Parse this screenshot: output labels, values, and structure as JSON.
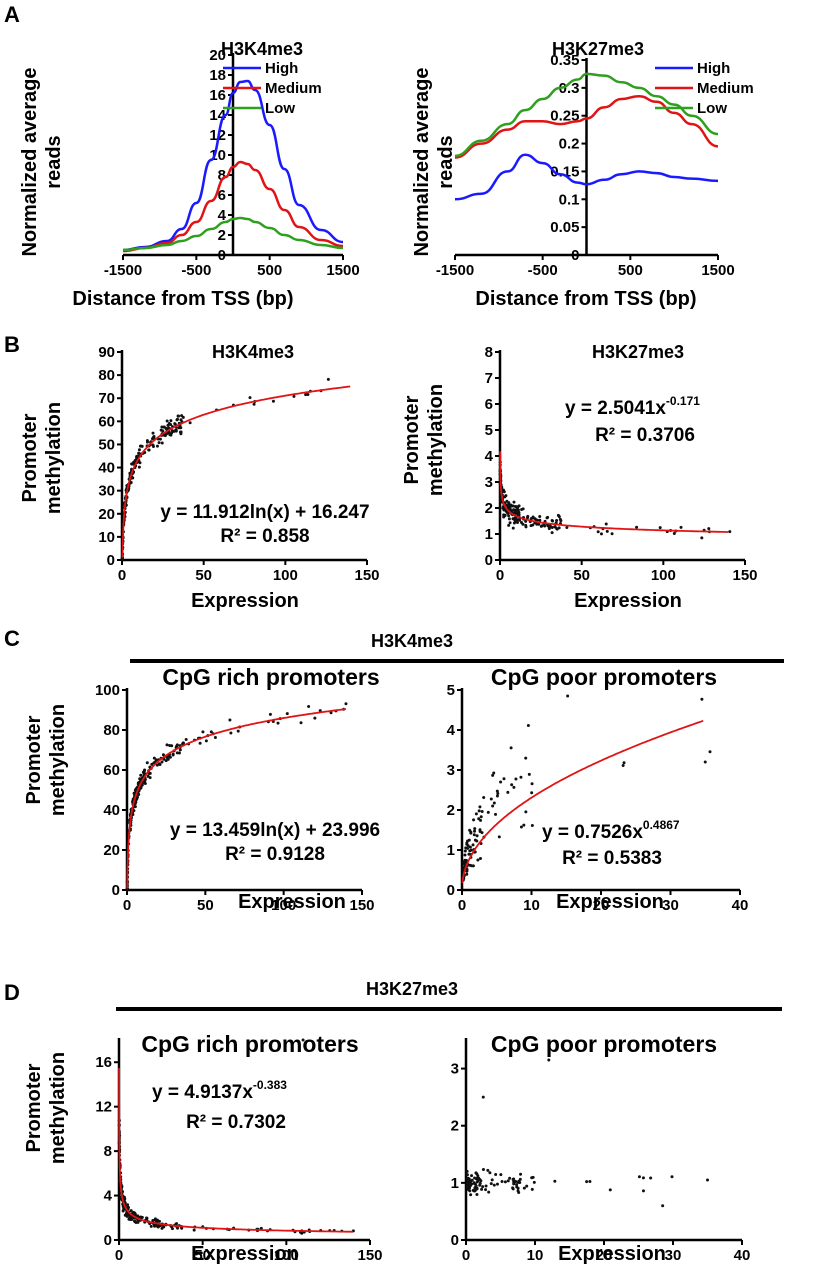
{
  "panels": {
    "A": "A",
    "B": "B",
    "C": "C",
    "D": "D"
  },
  "headers": {
    "C": "H3K4me3",
    "D": "H3K27me3"
  },
  "colors": {
    "High": "#1a1aff",
    "Medium": "#e01414",
    "Low": "#2ea01e",
    "fit": "#e01414",
    "dots": "#111111"
  },
  "chart_data": [
    {
      "id": "A1",
      "type": "line",
      "title": "H3K4me3",
      "xlabel": "Distance from TSS (bp)",
      "ylabel_lines": [
        "Normalized average",
        "reads"
      ],
      "xlim": [
        -1500,
        1500
      ],
      "ylim": [
        0,
        20
      ],
      "xticks": [
        -1500,
        -500,
        500,
        1500
      ],
      "yticks": [
        0,
        2,
        4,
        6,
        8,
        10,
        12,
        14,
        16,
        18,
        20
      ],
      "x": [
        -1500,
        -1200,
        -900,
        -700,
        -500,
        -300,
        -100,
        0,
        100,
        200,
        300,
        500,
        700,
        900,
        1200,
        1500
      ],
      "series": [
        {
          "name": "High",
          "values": [
            0.5,
            0.8,
            1.4,
            2.6,
            5.2,
            9.5,
            14.0,
            16.2,
            17.3,
            17.4,
            16.5,
            13.0,
            8.6,
            5.0,
            2.5,
            1.3
          ]
        },
        {
          "name": "Medium",
          "values": [
            0.4,
            0.7,
            1.2,
            2.0,
            3.3,
            5.4,
            7.8,
            8.8,
            9.3,
            9.1,
            8.5,
            6.6,
            4.5,
            2.8,
            1.5,
            0.9
          ]
        },
        {
          "name": "Low",
          "values": [
            0.5,
            0.7,
            1.0,
            1.4,
            1.9,
            2.6,
            3.3,
            3.6,
            3.7,
            3.6,
            3.3,
            2.7,
            2.0,
            1.5,
            1.0,
            0.7
          ]
        }
      ]
    },
    {
      "id": "A2",
      "type": "line",
      "title": "H3K27me3",
      "xlabel": "Distance from TSS (bp)",
      "ylabel_lines": [
        "Normalized average",
        "reads"
      ],
      "xlim": [
        -1500,
        1500
      ],
      "ylim": [
        0,
        0.35
      ],
      "xticks": [
        -1500,
        -500,
        500,
        1500
      ],
      "yticks": [
        0,
        0.05,
        0.1,
        0.15,
        0.2,
        0.25,
        0.3,
        0.35
      ],
      "x": [
        -1500,
        -1200,
        -900,
        -700,
        -500,
        -300,
        -100,
        0,
        200,
        400,
        600,
        800,
        1000,
        1200,
        1500
      ],
      "series": [
        {
          "name": "High",
          "values": [
            0.1,
            0.11,
            0.15,
            0.18,
            0.165,
            0.145,
            0.13,
            0.127,
            0.135,
            0.145,
            0.15,
            0.147,
            0.14,
            0.137,
            0.133
          ]
        },
        {
          "name": "Medium",
          "values": [
            0.175,
            0.2,
            0.225,
            0.24,
            0.24,
            0.235,
            0.24,
            0.245,
            0.265,
            0.28,
            0.285,
            0.275,
            0.255,
            0.235,
            0.195
          ]
        },
        {
          "name": "Low",
          "values": [
            0.178,
            0.205,
            0.235,
            0.26,
            0.28,
            0.3,
            0.315,
            0.325,
            0.322,
            0.31,
            0.3,
            0.285,
            0.27,
            0.25,
            0.217
          ]
        }
      ]
    },
    {
      "id": "B1",
      "type": "scatter",
      "title": "H3K4me3",
      "xlabel": "Expression",
      "ylabel_lines": [
        "Promoter",
        "methylation"
      ],
      "xlim": [
        0,
        150
      ],
      "ylim": [
        0,
        90
      ],
      "xticks": [
        0,
        50,
        100,
        150
      ],
      "yticks": [
        0,
        10,
        20,
        30,
        40,
        50,
        60,
        70,
        80,
        90
      ],
      "fit": {
        "form": "log",
        "a": 11.912,
        "b": 16.247
      },
      "equation": "y = 11.912ln(x) + 16.247",
      "r2": "R² = 0.858"
    },
    {
      "id": "B2",
      "type": "scatter",
      "title": "H3K27me3",
      "xlabel": "Expression",
      "ylabel_lines": [
        "Promoter",
        "methylation"
      ],
      "xlim": [
        0,
        150
      ],
      "ylim": [
        0,
        8
      ],
      "xticks": [
        0,
        50,
        100,
        150
      ],
      "yticks": [
        0,
        1,
        2,
        3,
        4,
        5,
        6,
        7,
        8
      ],
      "fit": {
        "form": "power",
        "a": 2.5041,
        "b": -0.171
      },
      "equation": "y = 2.5041x",
      "exponent": "-0.171",
      "r2": "R² = 0.3706"
    },
    {
      "id": "C1",
      "type": "scatter",
      "title": "CpG rich promoters",
      "xlabel": "Expression",
      "ylabel_lines": [
        "Promoter",
        "methylation"
      ],
      "xlim": [
        0,
        150
      ],
      "ylim": [
        0,
        100
      ],
      "xticks": [
        0,
        50,
        100,
        150
      ],
      "yticks": [
        0,
        20,
        40,
        60,
        80,
        100
      ],
      "fit": {
        "form": "log",
        "a": 13.459,
        "b": 23.996
      },
      "equation": "y = 13.459ln(x) + 23.996",
      "r2": "R² = 0.9128"
    },
    {
      "id": "C2",
      "type": "scatter",
      "title": "CpG poor promoters",
      "xlabel": "Expression",
      "ylabel_lines": [],
      "xlim": [
        0,
        40
      ],
      "ylim": [
        0,
        5
      ],
      "xticks": [
        0,
        10,
        20,
        30,
        40
      ],
      "yticks": [
        0,
        1,
        2,
        3,
        4,
        5
      ],
      "fit": {
        "form": "power",
        "a": 0.7526,
        "b": 0.4867
      },
      "equation": "y = 0.7526x",
      "exponent": "0.4867",
      "r2": "R² = 0.5383"
    },
    {
      "id": "D1",
      "type": "scatter",
      "title": "CpG rich promoters",
      "xlabel": "Expression",
      "ylabel_lines": [
        "Promoter",
        "methylation"
      ],
      "xlim": [
        0,
        150
      ],
      "ylim": [
        0,
        18
      ],
      "xticks": [
        0,
        50,
        100,
        150
      ],
      "yticks": [
        0,
        4,
        8,
        12,
        16
      ],
      "fit": {
        "form": "power",
        "a": 4.9137,
        "b": -0.383
      },
      "equation": "y = 4.9137x",
      "exponent": "-0.383",
      "r2": "R² = 0.7302"
    },
    {
      "id": "D2",
      "type": "scatter",
      "title": "CpG poor promoters",
      "xlabel": "Expression",
      "ylabel_lines": [],
      "xlim": [
        0,
        40
      ],
      "ylim": [
        0,
        3.5
      ],
      "xticks": [
        0,
        10,
        20,
        30,
        40
      ],
      "yticks": [
        0,
        1,
        2,
        3
      ],
      "fit": null,
      "equation": "",
      "r2": ""
    }
  ]
}
